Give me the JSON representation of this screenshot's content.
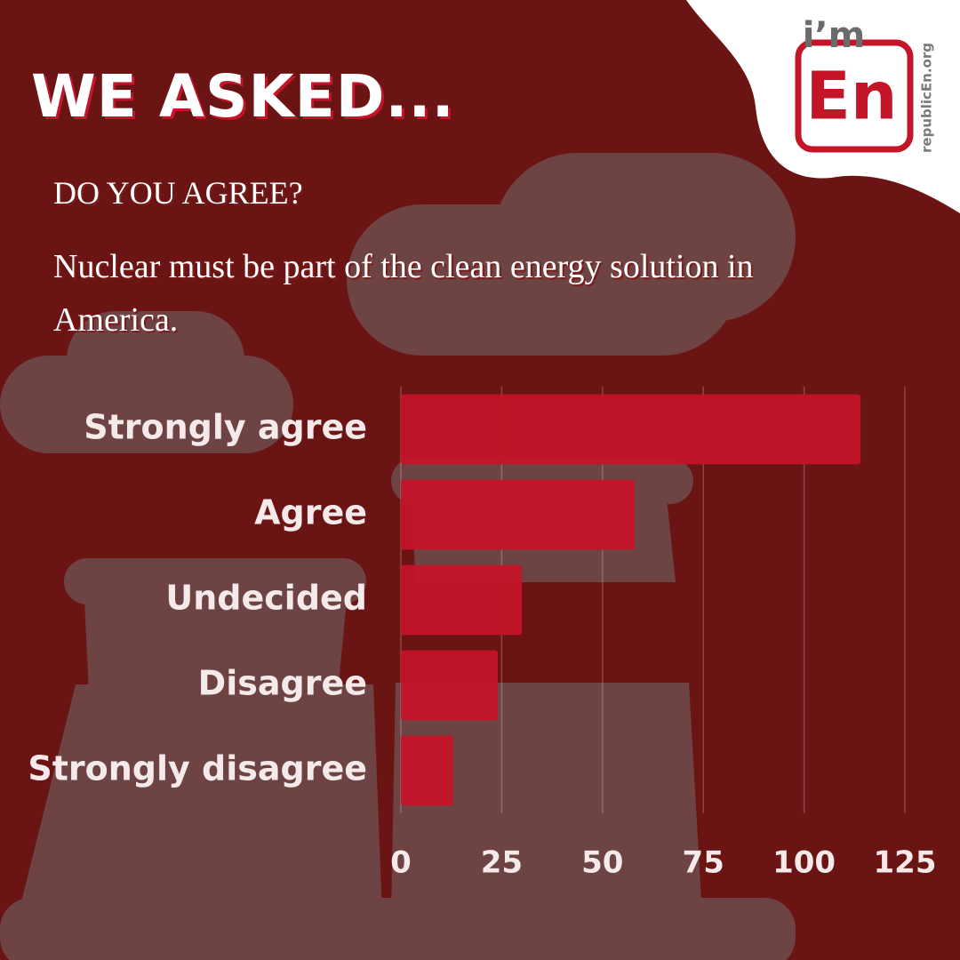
{
  "chart_data": {
    "type": "bar",
    "orientation": "horizontal",
    "title": "WE ASKED...",
    "subtitle": "DO YOU AGREE?",
    "question": "Nuclear must be part of the clean energy solution in America.",
    "logo": {
      "top": "i’m",
      "main": "En",
      "url": "republicEn.org"
    },
    "categories": [
      "Strongly agree",
      "Agree",
      "Undecided",
      "Disagree",
      "Strongly disagree"
    ],
    "values": [
      114,
      58,
      30,
      24,
      13
    ],
    "color": "#c41428",
    "xlim": [
      0,
      125
    ],
    "xticks": [
      0,
      25,
      50,
      75,
      100,
      125
    ],
    "grid": true
  }
}
